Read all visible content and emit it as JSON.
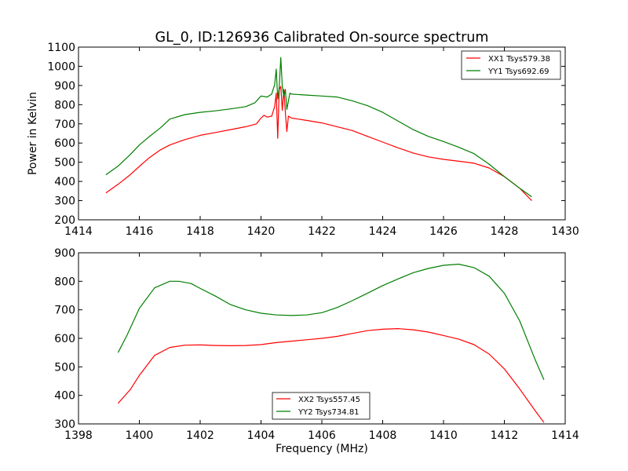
{
  "chart_data": [
    {
      "type": "line",
      "title": "GL_0, ID:126936 Calibrated On-source spectrum",
      "xlabel": "",
      "ylabel": "Power in Kelvin",
      "xlim": [
        1414,
        1430
      ],
      "ylim": [
        200,
        1100
      ],
      "xticks": [
        1414,
        1416,
        1418,
        1420,
        1422,
        1424,
        1426,
        1428,
        1430
      ],
      "yticks": [
        200,
        300,
        400,
        500,
        600,
        700,
        800,
        900,
        1000,
        1100
      ],
      "grid": false,
      "legend_position": "top-right",
      "series": [
        {
          "name": "XX1 Tsys579.38",
          "color": "#ff0000",
          "points": [
            [
              1414.9,
              340
            ],
            [
              1415.3,
              385
            ],
            [
              1415.7,
              435
            ],
            [
              1416.0,
              478
            ],
            [
              1416.3,
              520
            ],
            [
              1416.7,
              565
            ],
            [
              1417.0,
              590
            ],
            [
              1417.5,
              618
            ],
            [
              1418.0,
              640
            ],
            [
              1418.5,
              655
            ],
            [
              1419.0,
              670
            ],
            [
              1419.5,
              685
            ],
            [
              1419.85,
              700
            ],
            [
              1420.0,
              730
            ],
            [
              1420.1,
              745
            ],
            [
              1420.2,
              735
            ],
            [
              1420.35,
              740
            ],
            [
              1420.45,
              790
            ],
            [
              1420.5,
              860
            ],
            [
              1420.55,
              625
            ],
            [
              1420.6,
              880
            ],
            [
              1420.65,
              895
            ],
            [
              1420.7,
              770
            ],
            [
              1420.75,
              880
            ],
            [
              1420.8,
              760
            ],
            [
              1420.85,
              660
            ],
            [
              1420.9,
              740
            ],
            [
              1421.0,
              730
            ],
            [
              1421.5,
              718
            ],
            [
              1422.0,
              705
            ],
            [
              1422.5,
              685
            ],
            [
              1423.0,
              665
            ],
            [
              1423.5,
              635
            ],
            [
              1424.0,
              605
            ],
            [
              1424.5,
              575
            ],
            [
              1425.0,
              548
            ],
            [
              1425.5,
              528
            ],
            [
              1426.0,
              515
            ],
            [
              1426.5,
              505
            ],
            [
              1427.0,
              495
            ],
            [
              1427.5,
              470
            ],
            [
              1428.0,
              425
            ],
            [
              1428.5,
              365
            ],
            [
              1428.9,
              300
            ]
          ]
        },
        {
          "name": "YY1 Tsys692.69",
          "color": "#007f00",
          "points": [
            [
              1414.9,
              435
            ],
            [
              1415.3,
              480
            ],
            [
              1415.7,
              540
            ],
            [
              1416.0,
              590
            ],
            [
              1416.3,
              630
            ],
            [
              1416.7,
              680
            ],
            [
              1417.0,
              725
            ],
            [
              1417.5,
              748
            ],
            [
              1418.0,
              760
            ],
            [
              1418.5,
              768
            ],
            [
              1419.0,
              778
            ],
            [
              1419.5,
              790
            ],
            [
              1419.8,
              810
            ],
            [
              1420.0,
              845
            ],
            [
              1420.2,
              840
            ],
            [
              1420.35,
              855
            ],
            [
              1420.45,
              905
            ],
            [
              1420.5,
              985
            ],
            [
              1420.55,
              830
            ],
            [
              1420.6,
              890
            ],
            [
              1420.65,
              1045
            ],
            [
              1420.7,
              895
            ],
            [
              1420.75,
              840
            ],
            [
              1420.8,
              880
            ],
            [
              1420.85,
              775
            ],
            [
              1420.95,
              860
            ],
            [
              1421.0,
              855
            ],
            [
              1421.5,
              850
            ],
            [
              1422.0,
              845
            ],
            [
              1422.5,
              840
            ],
            [
              1423.0,
              820
            ],
            [
              1423.5,
              795
            ],
            [
              1424.0,
              760
            ],
            [
              1424.5,
              715
            ],
            [
              1425.0,
              670
            ],
            [
              1425.5,
              635
            ],
            [
              1426.0,
              608
            ],
            [
              1426.5,
              578
            ],
            [
              1427.0,
              545
            ],
            [
              1427.5,
              490
            ],
            [
              1428.0,
              425
            ],
            [
              1428.5,
              365
            ],
            [
              1428.9,
              320
            ]
          ]
        }
      ]
    },
    {
      "type": "line",
      "title": "",
      "xlabel": "Frequency (MHz)",
      "ylabel": "",
      "xlim": [
        1398,
        1414
      ],
      "ylim": [
        300,
        900
      ],
      "xticks": [
        1398,
        1400,
        1402,
        1404,
        1406,
        1408,
        1410,
        1412,
        1414
      ],
      "yticks": [
        300,
        400,
        500,
        600,
        700,
        800,
        900
      ],
      "grid": false,
      "legend_position": "bottom-center",
      "series": [
        {
          "name": "XX2 Tsys557.45",
          "color": "#ff0000",
          "points": [
            [
              1399.3,
              372
            ],
            [
              1399.7,
              420
            ],
            [
              1400.0,
              470
            ],
            [
              1400.5,
              540
            ],
            [
              1401.0,
              568
            ],
            [
              1401.5,
              576
            ],
            [
              1402.0,
              577
            ],
            [
              1402.5,
              575
            ],
            [
              1403.0,
              574
            ],
            [
              1403.5,
              575
            ],
            [
              1404.0,
              578
            ],
            [
              1404.5,
              585
            ],
            [
              1405.0,
              590
            ],
            [
              1405.5,
              595
            ],
            [
              1406.0,
              600
            ],
            [
              1406.5,
              607
            ],
            [
              1407.0,
              617
            ],
            [
              1407.5,
              627
            ],
            [
              1408.0,
              632
            ],
            [
              1408.5,
              634
            ],
            [
              1409.0,
              630
            ],
            [
              1409.5,
              622
            ],
            [
              1410.0,
              610
            ],
            [
              1410.5,
              597
            ],
            [
              1411.0,
              578
            ],
            [
              1411.5,
              545
            ],
            [
              1412.0,
              493
            ],
            [
              1412.5,
              423
            ],
            [
              1413.0,
              348
            ],
            [
              1413.3,
              305
            ]
          ]
        },
        {
          "name": "YY2 Tsys734.81",
          "color": "#007f00",
          "points": [
            [
              1399.3,
              550
            ],
            [
              1399.6,
              612
            ],
            [
              1400.0,
              705
            ],
            [
              1400.5,
              777
            ],
            [
              1401.0,
              800
            ],
            [
              1401.3,
              800
            ],
            [
              1401.7,
              792
            ],
            [
              1402.0,
              775
            ],
            [
              1402.5,
              748
            ],
            [
              1403.0,
              718
            ],
            [
              1403.5,
              700
            ],
            [
              1404.0,
              688
            ],
            [
              1404.5,
              682
            ],
            [
              1405.0,
              680
            ],
            [
              1405.5,
              682
            ],
            [
              1406.0,
              690
            ],
            [
              1406.5,
              708
            ],
            [
              1407.0,
              732
            ],
            [
              1407.5,
              758
            ],
            [
              1408.0,
              785
            ],
            [
              1408.5,
              808
            ],
            [
              1409.0,
              830
            ],
            [
              1409.5,
              845
            ],
            [
              1410.0,
              856
            ],
            [
              1410.5,
              860
            ],
            [
              1411.0,
              848
            ],
            [
              1411.5,
              818
            ],
            [
              1412.0,
              758
            ],
            [
              1412.5,
              662
            ],
            [
              1413.0,
              528
            ],
            [
              1413.3,
              455
            ]
          ]
        }
      ]
    }
  ]
}
